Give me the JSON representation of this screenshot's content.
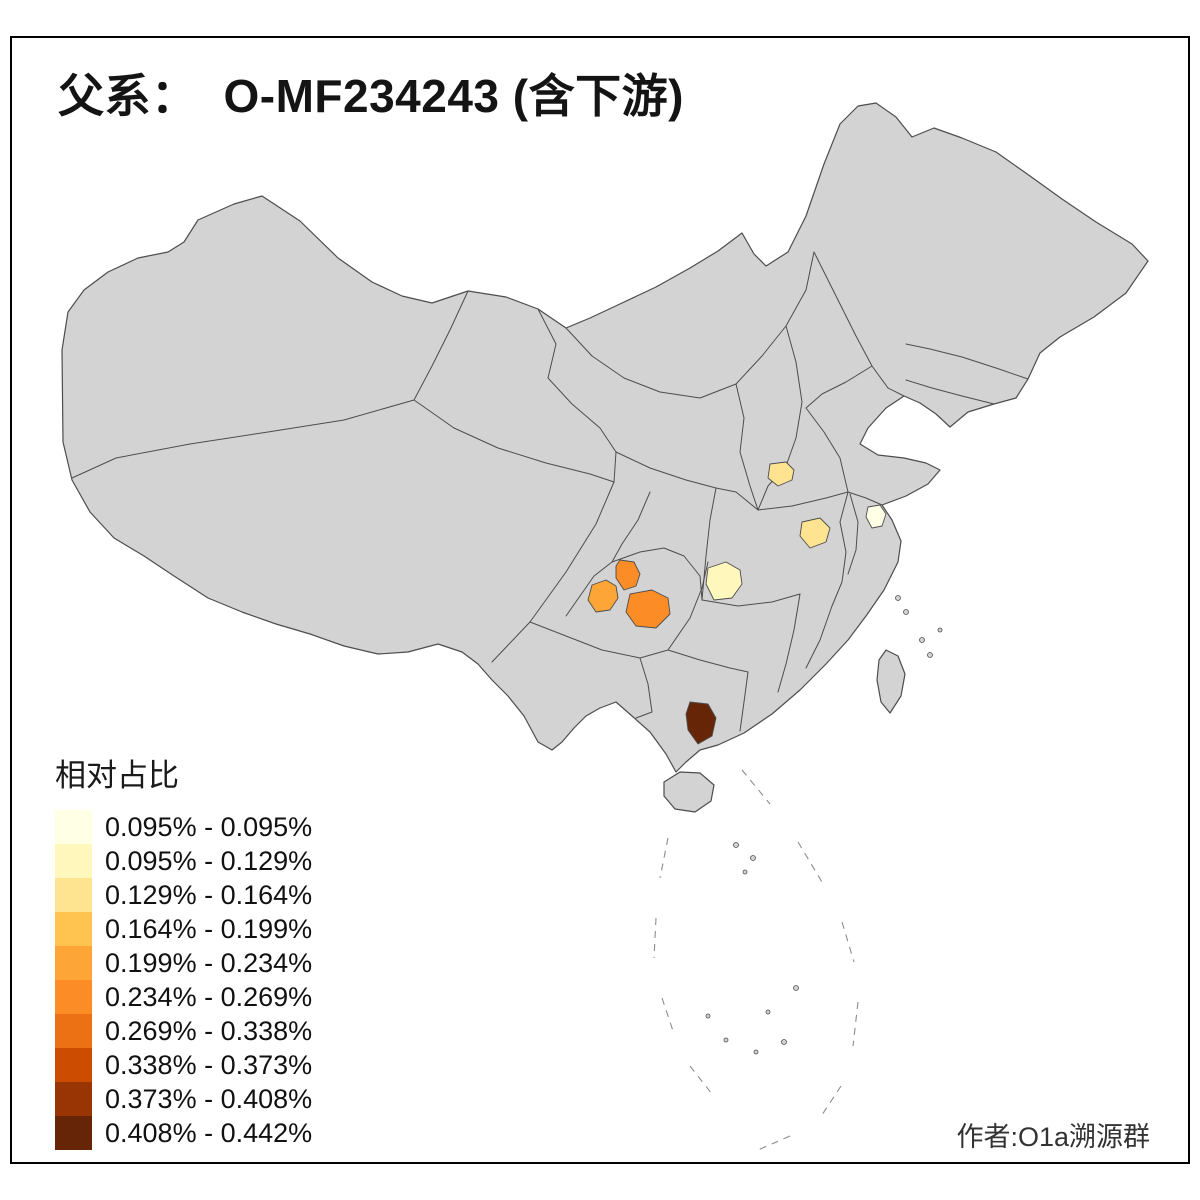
{
  "title": {
    "prefix": "父系：",
    "main": "O-MF234243 (含下游)"
  },
  "legend": {
    "title": "相对占比",
    "items": [
      {
        "label": "0.095% - 0.095%",
        "color": "#FFFFE5"
      },
      {
        "label": "0.095% - 0.129%",
        "color": "#FFF7BC"
      },
      {
        "label": "0.129% - 0.164%",
        "color": "#FEE391"
      },
      {
        "label": "0.164% - 0.199%",
        "color": "#FEC44F"
      },
      {
        "label": "0.199% - 0.234%",
        "color": "#FEA538"
      },
      {
        "label": "0.234% - 0.269%",
        "color": "#FB8C26"
      },
      {
        "label": "0.269% - 0.338%",
        "color": "#EC7014"
      },
      {
        "label": "0.338% - 0.373%",
        "color": "#CC4C02"
      },
      {
        "label": "0.373% - 0.408%",
        "color": "#993404"
      },
      {
        "label": "0.408% - 0.442%",
        "color": "#662506"
      }
    ]
  },
  "credit": "作者:O1a溯源群",
  "map": {
    "base_fill": "#D3D3D3",
    "border_color": "#4D4D4D",
    "sea_mark_color": "#8C8C8C",
    "background": "#FFFFFF",
    "regions": [
      {
        "id": "sichuan-south",
        "color": "#FEA538",
        "value_class": "0.199% - 0.234%"
      },
      {
        "id": "chongqing-west",
        "color": "#FB8C26",
        "value_class": "0.234% - 0.269%"
      },
      {
        "id": "guizhou-north",
        "color": "#FB8C26",
        "value_class": "0.234% - 0.269%"
      },
      {
        "id": "hubei-central",
        "color": "#FFF7BC",
        "value_class": "0.095% - 0.129%"
      },
      {
        "id": "henan-central",
        "color": "#FEE391",
        "value_class": "0.129% - 0.164%"
      },
      {
        "id": "anhui-central",
        "color": "#FEE391",
        "value_class": "0.129% - 0.164%"
      },
      {
        "id": "jiangsu-south",
        "color": "#FFFFE5",
        "value_class": "0.095% - 0.095%"
      },
      {
        "id": "guangxi-south",
        "color": "#662506",
        "value_class": "0.408% - 0.442%"
      }
    ]
  }
}
